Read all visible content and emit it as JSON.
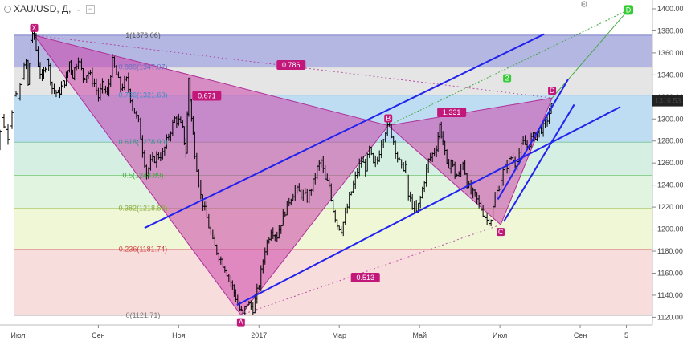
{
  "header": {
    "symbol": "XAU/USD, Д,",
    "collapse_glyph": "−",
    "menu_glyph": "⌄",
    "settings_icon": "gear-icon"
  },
  "chart_data": {
    "type": "candlestick",
    "instrument": "XAU/USD",
    "interval": "Д",
    "ylim": [
      1113,
      1408
    ],
    "y_ticks": [
      1120,
      1140,
      1160,
      1180,
      1200,
      1220,
      1240,
      1260,
      1280,
      1300,
      1320,
      1340,
      1360,
      1380,
      1400
    ],
    "x_ticks": [
      {
        "label": "Июл",
        "month": 0
      },
      {
        "label": "Сен",
        "month": 2
      },
      {
        "label": "Ноя",
        "month": 4
      },
      {
        "label": "2017",
        "month": 6
      },
      {
        "label": "Мар",
        "month": 8
      },
      {
        "label": "Май",
        "month": 10
      },
      {
        "label": "Июл",
        "month": 12
      },
      {
        "label": "Сен",
        "month": 14
      },
      {
        "label": "5",
        "month": 15.15
      }
    ],
    "x_range_months": [
      -0.45,
      15.8
    ],
    "last_price": "1316.53",
    "price_series": [
      [
        -0.6,
        1258
      ],
      [
        -0.4,
        1300
      ],
      [
        -0.25,
        1285
      ],
      [
        -0.1,
        1320
      ],
      [
        0,
        1318
      ],
      [
        0.1,
        1340
      ],
      [
        0.2,
        1352
      ],
      [
        0.25,
        1330
      ],
      [
        0.32,
        1372
      ],
      [
        0.4,
        1376
      ],
      [
        0.5,
        1350
      ],
      [
        0.6,
        1335
      ],
      [
        0.72,
        1356
      ],
      [
        0.85,
        1328
      ],
      [
        1.0,
        1322
      ],
      [
        1.12,
        1332
      ],
      [
        1.2,
        1336
      ],
      [
        1.28,
        1352
      ],
      [
        1.36,
        1340
      ],
      [
        1.5,
        1356
      ],
      [
        1.62,
        1338
      ],
      [
        1.75,
        1342
      ],
      [
        1.9,
        1332
      ],
      [
        2.0,
        1320
      ],
      [
        2.1,
        1330
      ],
      [
        2.22,
        1322
      ],
      [
        2.35,
        1352
      ],
      [
        2.45,
        1340
      ],
      [
        2.55,
        1328
      ],
      [
        2.7,
        1335
      ],
      [
        2.85,
        1312
      ],
      [
        3.0,
        1296
      ],
      [
        3.1,
        1272
      ],
      [
        3.2,
        1250
      ],
      [
        3.3,
        1260
      ],
      [
        3.45,
        1266
      ],
      [
        3.6,
        1268
      ],
      [
        3.75,
        1285
      ],
      [
        3.9,
        1300
      ],
      [
        4.0,
        1298
      ],
      [
        4.1,
        1290
      ],
      [
        4.18,
        1270
      ],
      [
        4.25,
        1337
      ],
      [
        4.32,
        1300
      ],
      [
        4.4,
        1270
      ],
      [
        4.55,
        1230
      ],
      [
        4.7,
        1210
      ],
      [
        4.85,
        1188
      ],
      [
        5.0,
        1176
      ],
      [
        5.15,
        1165
      ],
      [
        5.3,
        1152
      ],
      [
        5.42,
        1138
      ],
      [
        5.52,
        1127
      ],
      [
        5.6,
        1122
      ],
      [
        5.7,
        1133
      ],
      [
        5.85,
        1128
      ],
      [
        6.0,
        1150
      ],
      [
        6.15,
        1182
      ],
      [
        6.3,
        1200
      ],
      [
        6.45,
        1194
      ],
      [
        6.6,
        1212
      ],
      [
        6.75,
        1226
      ],
      [
        6.9,
        1236
      ],
      [
        7.05,
        1232
      ],
      [
        7.2,
        1228
      ],
      [
        7.35,
        1242
      ],
      [
        7.45,
        1255
      ],
      [
        7.55,
        1262
      ],
      [
        7.65,
        1244
      ],
      [
        7.75,
        1240
      ],
      [
        7.85,
        1218
      ],
      [
        7.95,
        1204
      ],
      [
        8.05,
        1200
      ],
      [
        8.15,
        1212
      ],
      [
        8.25,
        1228
      ],
      [
        8.35,
        1240
      ],
      [
        8.45,
        1253
      ],
      [
        8.55,
        1262
      ],
      [
        8.65,
        1256
      ],
      [
        8.75,
        1272
      ],
      [
        8.85,
        1258
      ],
      [
        8.95,
        1262
      ],
      [
        9.05,
        1280
      ],
      [
        9.15,
        1290
      ],
      [
        9.25,
        1293
      ],
      [
        9.35,
        1280
      ],
      [
        9.45,
        1265
      ],
      [
        9.55,
        1255
      ],
      [
        9.65,
        1258
      ],
      [
        9.72,
        1230
      ],
      [
        9.82,
        1222
      ],
      [
        9.92,
        1215
      ],
      [
        10.02,
        1228
      ],
      [
        10.12,
        1245
      ],
      [
        10.22,
        1262
      ],
      [
        10.32,
        1268
      ],
      [
        10.42,
        1275
      ],
      [
        10.5,
        1294
      ],
      [
        10.58,
        1280
      ],
      [
        10.68,
        1256
      ],
      [
        10.78,
        1262
      ],
      [
        10.88,
        1250
      ],
      [
        10.98,
        1248
      ],
      [
        11.08,
        1262
      ],
      [
        11.18,
        1242
      ],
      [
        11.28,
        1233
      ],
      [
        11.38,
        1230
      ],
      [
        11.48,
        1222
      ],
      [
        11.58,
        1215
      ],
      [
        11.68,
        1208
      ],
      [
        11.78,
        1210
      ],
      [
        11.88,
        1228
      ],
      [
        11.98,
        1240
      ],
      [
        12.08,
        1252
      ],
      [
        12.18,
        1258
      ],
      [
        12.28,
        1265
      ],
      [
        12.38,
        1260
      ],
      [
        12.48,
        1270
      ],
      [
        12.58,
        1278
      ],
      [
        12.68,
        1275
      ],
      [
        12.78,
        1282
      ],
      [
        12.88,
        1285
      ],
      [
        12.98,
        1290
      ],
      [
        13.08,
        1292
      ],
      [
        13.18,
        1300
      ],
      [
        13.28,
        1311
      ],
      [
        13.32,
        1316.53
      ]
    ],
    "harmonic_points": [
      {
        "label": "X",
        "month": 0.4,
        "price": 1376.06
      },
      {
        "label": "A",
        "month": 5.55,
        "price": 1122
      },
      {
        "label": "B",
        "month": 9.22,
        "price": 1294
      },
      {
        "label": "C",
        "month": 12.02,
        "price": 1204
      },
      {
        "label": "D",
        "month": 13.3,
        "price": 1319
      }
    ],
    "target_point": {
      "label": "D",
      "month": 15.2,
      "price": 1399
    },
    "target_marker": {
      "label": "2",
      "month": 12.18,
      "price": 1337
    },
    "ratios": [
      {
        "label": "0.671",
        "month": 4.7,
        "price": 1321
      },
      {
        "label": "0.786",
        "month": 6.8,
        "price": 1349
      },
      {
        "label": "1.331",
        "month": 10.8,
        "price": 1306
      },
      {
        "label": "0.513",
        "month": 8.65,
        "price": 1156
      }
    ],
    "fib_levels": [
      {
        "level": "1",
        "value": 1376.06,
        "text": "1(1376.06)",
        "fill": "#9a9fd8",
        "line": "#7b80c8",
        "text_color": "#555555"
      },
      {
        "level": "0.886",
        "value": 1347.07,
        "text": "0.886(1347.07)",
        "fill": "#dcdcdc",
        "line": "#b5b5b5",
        "text_color": "#6a6fc0"
      },
      {
        "level": "0.786",
        "value": 1321.63,
        "text": "0.786(1321.63)",
        "fill": "#a8d2ee",
        "line": "#7fb7dc",
        "text_color": "#3c8fcc"
      },
      {
        "level": "0.618",
        "value": 1278.9,
        "text": "0.618(1278.90)",
        "fill": "#c7ead8",
        "line": "#86c7a6",
        "text_color": "#2f9a8a"
      },
      {
        "level": "0.5",
        "value": 1248.89,
        "text": "0.5(1248.89)",
        "fill": "#d5f0d5",
        "line": "#8dd08d",
        "text_color": "#3caa3c"
      },
      {
        "level": "0.382",
        "value": 1218.88,
        "text": "0.382(1218.88)",
        "fill": "#e9f4c9",
        "line": "#b8d27c",
        "text_color": "#8aa83a"
      },
      {
        "level": "0.236",
        "value": 1181.74,
        "text": "0.236(1181.74)",
        "fill": "#f6d2d2",
        "line": "#e39a9a",
        "text_color": "#d04040"
      },
      {
        "level": "0",
        "value": 1121.71,
        "text": "0(1121.71)",
        "fill": "#ffffff",
        "line": "#aaaaaa",
        "text_color": "#777777"
      }
    ],
    "trend_lines": [
      {
        "color": "#2222ee",
        "from": [
          3.15,
          1201
        ],
        "to": [
          13.1,
          1377
        ]
      },
      {
        "color": "#2222ee",
        "from": [
          5.45,
          1131
        ],
        "to": [
          15.0,
          1311
        ]
      },
      {
        "color": "#2222ee",
        "from": [
          11.95,
          1227
        ],
        "to": [
          13.7,
          1336
        ]
      },
      {
        "color": "#2222ee",
        "from": [
          12.1,
          1207
        ],
        "to": [
          13.85,
          1313
        ]
      }
    ],
    "colors": {
      "pattern_fill": "#cc44aa",
      "pattern_line": "#b0309a",
      "marker_fill": "#c2187a",
      "projection_line": "#44aa44",
      "target_fill": "#33cc33",
      "candle": "#000000",
      "price_tag_bg": "#222222",
      "price_tag_text": "#ffffff"
    }
  }
}
